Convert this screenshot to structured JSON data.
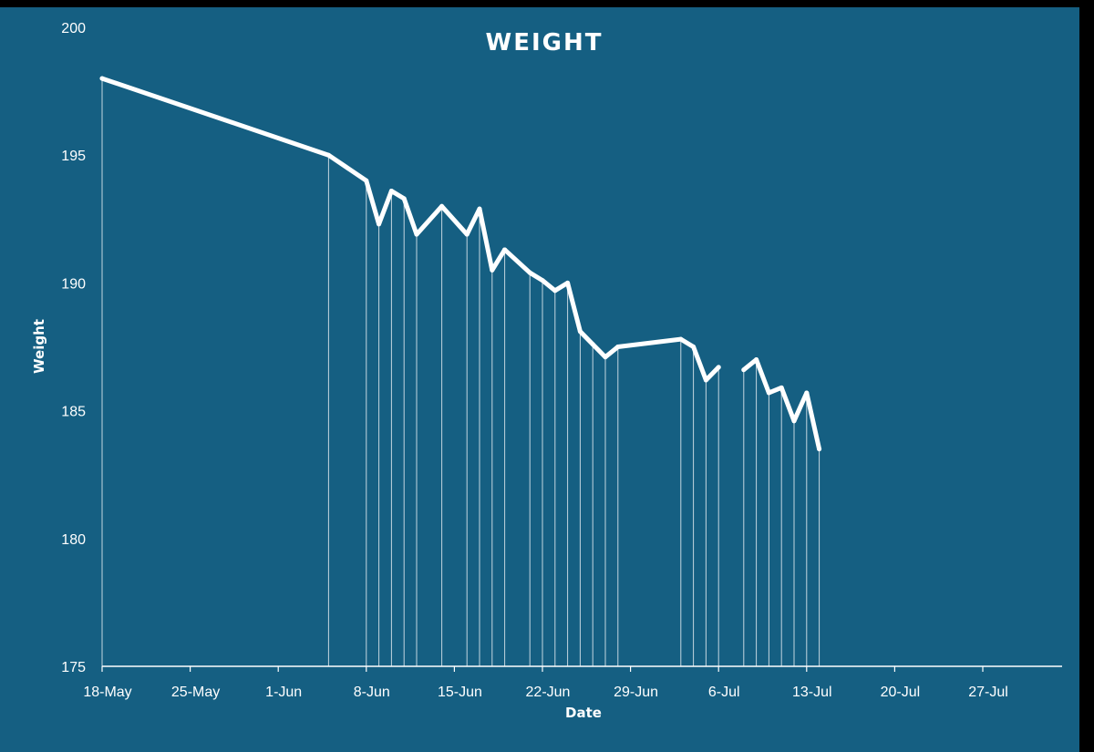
{
  "chart_data": {
    "type": "line",
    "title": "WEIGHT",
    "xlabel": "Date",
    "ylabel": "Weight",
    "x_axis": {
      "type": "date",
      "ticks": [
        "18-May",
        "25-May",
        "1-Jun",
        "8-Jun",
        "15-Jun",
        "22-Jun",
        "29-Jun",
        "6-Jul",
        "13-Jul",
        "20-Jul",
        "27-Jul"
      ],
      "range": [
        "18-May",
        "27-Jul"
      ]
    },
    "y_axis": {
      "ticks": [
        175,
        180,
        185,
        190,
        195,
        200
      ],
      "ylim": [
        175,
        200
      ]
    },
    "grid": false,
    "drop_lines": true,
    "colors": {
      "background": "#155f82",
      "line": "#ffffff"
    },
    "series": [
      {
        "segments": [
          [
            {
              "x": "18-May",
              "y": 198.0
            },
            {
              "x": "5-Jun",
              "y": 195.0
            },
            {
              "x": "8-Jun",
              "y": 194.0
            },
            {
              "x": "9-Jun",
              "y": 192.3
            },
            {
              "x": "10-Jun",
              "y": 193.6
            },
            {
              "x": "11-Jun",
              "y": 193.3
            },
            {
              "x": "12-Jun",
              "y": 191.9
            },
            {
              "x": "14-Jun",
              "y": 193.0
            },
            {
              "x": "16-Jun",
              "y": 191.9
            },
            {
              "x": "17-Jun",
              "y": 192.9
            },
            {
              "x": "18-Jun",
              "y": 190.5
            },
            {
              "x": "19-Jun",
              "y": 191.3
            },
            {
              "x": "21-Jun",
              "y": 190.4
            },
            {
              "x": "22-Jun",
              "y": 190.1
            },
            {
              "x": "23-Jun",
              "y": 189.7
            },
            {
              "x": "24-Jun",
              "y": 190.0
            },
            {
              "x": "25-Jun",
              "y": 188.1
            },
            {
              "x": "26-Jun",
              "y": 187.6
            },
            {
              "x": "27-Jun",
              "y": 187.1
            },
            {
              "x": "28-Jun",
              "y": 187.5
            },
            {
              "x": "3-Jul",
              "y": 187.8
            },
            {
              "x": "4-Jul",
              "y": 187.5
            },
            {
              "x": "5-Jul",
              "y": 186.2
            },
            {
              "x": "6-Jul",
              "y": 186.7
            }
          ],
          [
            {
              "x": "8-Jul",
              "y": 186.6
            },
            {
              "x": "9-Jul",
              "y": 187.0
            },
            {
              "x": "10-Jul",
              "y": 185.7
            },
            {
              "x": "11-Jul",
              "y": 185.9
            },
            {
              "x": "12-Jul",
              "y": 184.6
            },
            {
              "x": "13-Jul",
              "y": 185.7
            },
            {
              "x": "14-Jul",
              "y": 183.5
            }
          ]
        ]
      }
    ]
  }
}
